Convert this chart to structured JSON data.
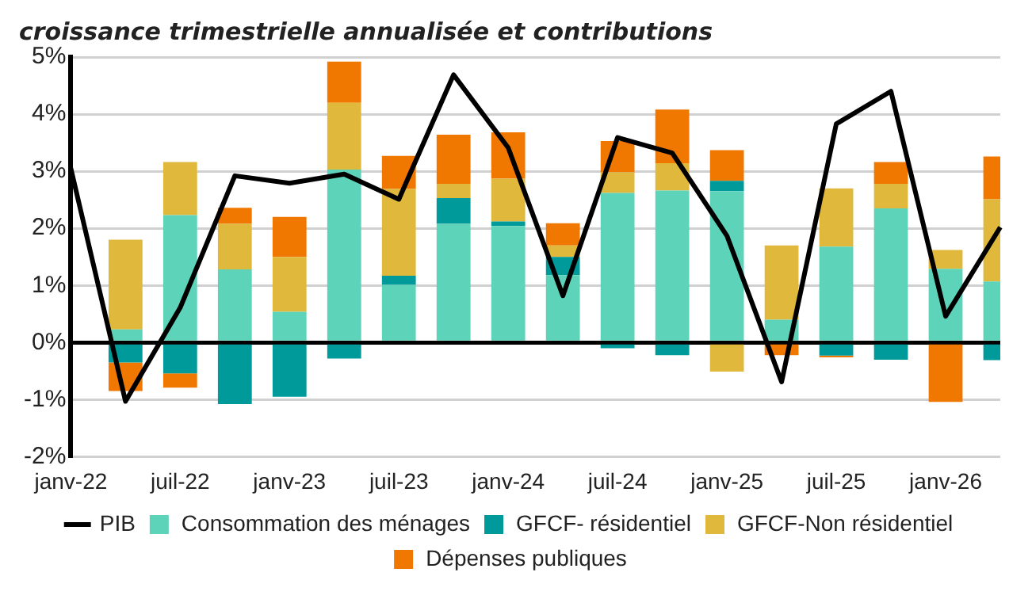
{
  "chart_data": {
    "type": "bar",
    "title": "croissance trimestrielle annualisée et contributions",
    "stacked": true,
    "categories": [
      "janv-22",
      null,
      "juil-22",
      null,
      "janv-23",
      null,
      "juil-23",
      null,
      "janv-24",
      null,
      "juil-24",
      null,
      "janv-25",
      null,
      "juil-25",
      null,
      "janv-26",
      null
    ],
    "series": [
      {
        "name": "Consommation des ménages",
        "color": "#5dd3b9",
        "values": [
          null,
          0.23,
          2.23,
          1.28,
          0.54,
          3.03,
          1.01,
          2.08,
          2.04,
          1.18,
          2.62,
          2.66,
          2.65,
          0.4,
          1.68,
          2.35,
          1.29,
          1.07
        ]
      },
      {
        "name": "GFCF- résidentiel",
        "color": "#009a9a",
        "values": [
          null,
          -0.35,
          -0.54,
          -1.08,
          -0.95,
          -0.28,
          0.16,
          0.45,
          0.08,
          0.32,
          -0.1,
          -0.22,
          0.18,
          0,
          -0.23,
          -0.3,
          0,
          -0.31
        ]
      },
      {
        "name": "GFCF-Non résidentiel",
        "color": "#e0b83c",
        "values": [
          null,
          1.57,
          0.93,
          0.8,
          0.96,
          1.17,
          1.52,
          0.25,
          0.75,
          0.2,
          0.36,
          0.48,
          -0.51,
          1.3,
          1.02,
          0.43,
          0.33,
          1.44
        ]
      },
      {
        "name": "Dépenses publiques",
        "color": "#f07800",
        "values": [
          null,
          -0.5,
          -0.25,
          0.28,
          0.7,
          0.72,
          0.58,
          0.86,
          0.81,
          0.39,
          0.55,
          0.94,
          0.54,
          -0.22,
          -0.03,
          0.38,
          -1.04,
          0.75
        ]
      },
      {
        "name": "PIB",
        "type": "line",
        "color": "#000000",
        "values": [
          3.05,
          -1.03,
          0.61,
          2.92,
          2.79,
          2.95,
          2.51,
          4.69,
          3.41,
          0.82,
          3.59,
          3.32,
          1.87,
          -0.69,
          3.83,
          4.4,
          0.46,
          2.02
        ]
      }
    ],
    "ylim": [
      -2,
      5
    ],
    "yticks": [
      {
        "value": -2,
        "label": "-2%"
      },
      {
        "value": -1,
        "label": "-1%"
      },
      {
        "value": 0,
        "label": "0%"
      },
      {
        "value": 1,
        "label": "1%"
      },
      {
        "value": 2,
        "label": "2%"
      },
      {
        "value": 3,
        "label": "3%"
      },
      {
        "value": 4,
        "label": "4%"
      },
      {
        "value": 5,
        "label": "5%"
      }
    ],
    "grid": "y",
    "legend": "bottom",
    "marker": "none"
  }
}
